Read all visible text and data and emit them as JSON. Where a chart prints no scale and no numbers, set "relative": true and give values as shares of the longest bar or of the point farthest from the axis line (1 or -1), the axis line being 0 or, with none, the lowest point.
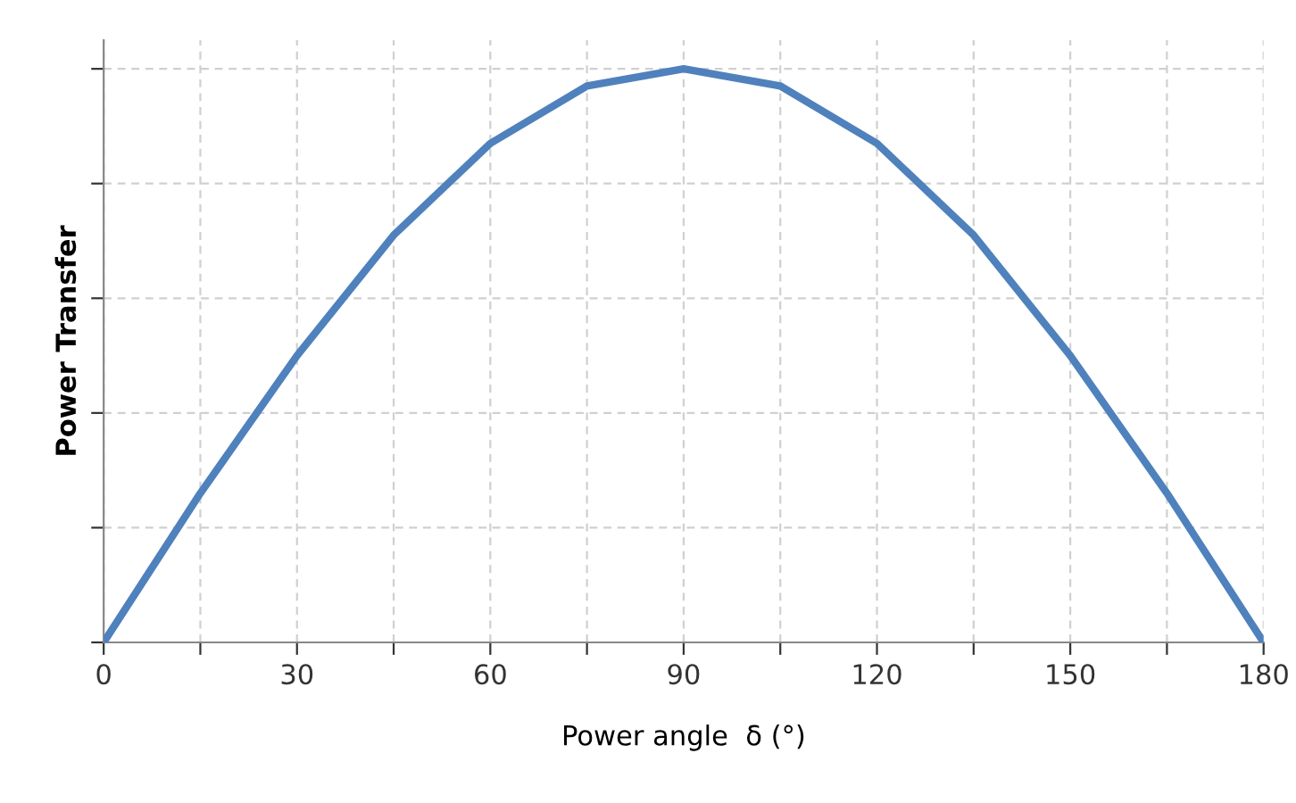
{
  "chart_data": {
    "type": "line",
    "xlabel": "Power angle  δ (°)",
    "ylabel": "Power Transfer",
    "relative": true,
    "x": [
      0,
      15,
      30,
      45,
      60,
      75,
      90,
      105,
      120,
      135,
      150,
      165,
      180
    ],
    "series": [
      {
        "color": "#4f81bd",
        "values": [
          0,
          0.26,
          0.5,
          0.71,
          0.87,
          0.97,
          1,
          0.97,
          0.87,
          0.71,
          0.5,
          0.26,
          0
        ]
      }
    ],
    "xlim": [
      0,
      180
    ],
    "xticks": [
      0,
      {
        "value": 15,
        "label": null
      },
      30,
      {
        "value": 45,
        "label": null
      },
      60,
      {
        "value": 75,
        "label": null
      },
      90,
      {
        "value": 105,
        "label": null
      },
      120,
      {
        "value": 135,
        "label": null
      },
      150,
      {
        "value": 165,
        "label": null
      },
      180
    ],
    "grid": true,
    "marker": "none",
    "line_style": "solid"
  }
}
